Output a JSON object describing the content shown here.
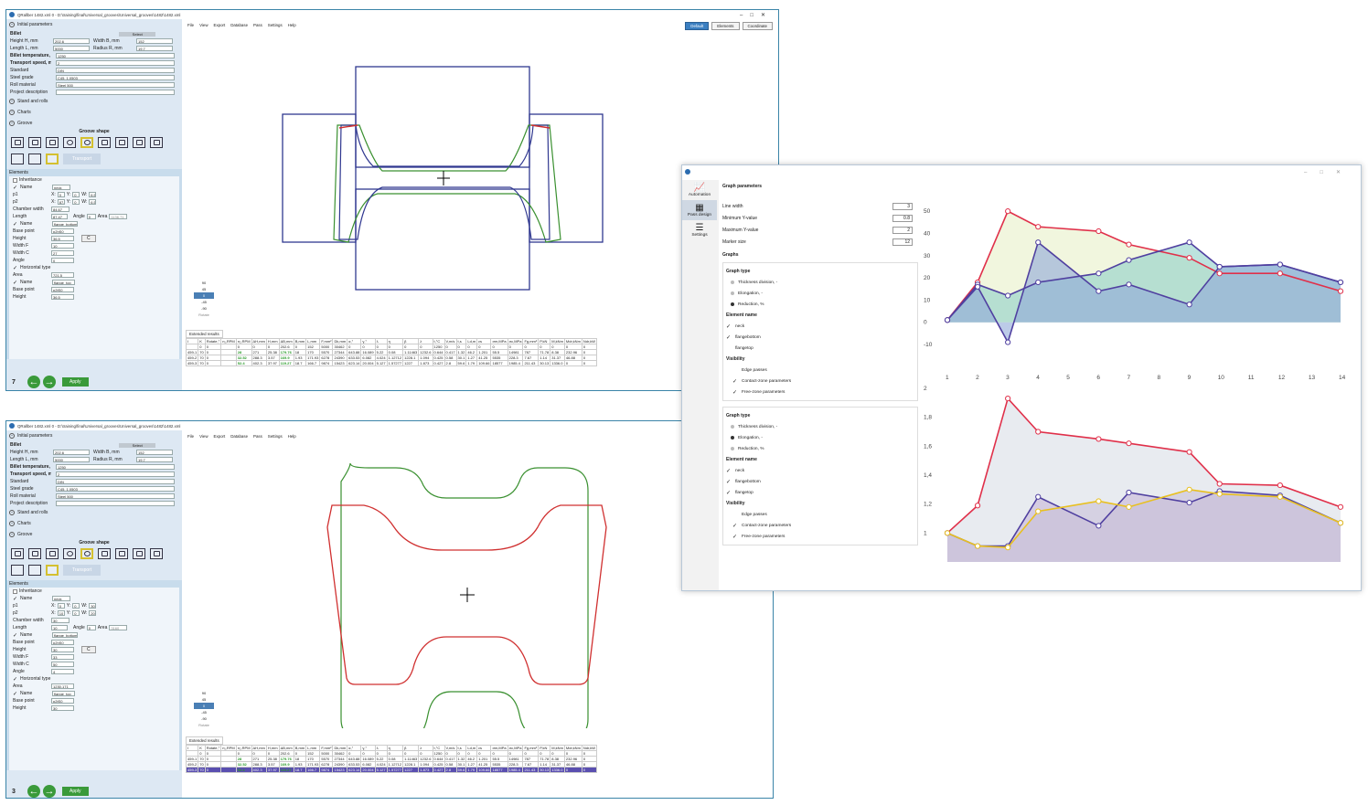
{
  "win1": {
    "title": "QRallber 1482.xml 0 - D:\\training\\final\\Universal_grooves\\Universal_grooves\\1482\\1482.xml",
    "pass": "7"
  },
  "win2": {
    "title": "QRallber 1482.xml 0 - D:\\training\\final\\Universal_grooves\\Universal_grooves\\1482\\1482.xml",
    "pass": "3"
  },
  "menu": [
    "File",
    "View",
    "Export",
    "Database",
    "Pass",
    "Settings",
    "Help"
  ],
  "toolbar": {
    "default": "Default",
    "elements": "Elements",
    "coordinate": "Coordinate"
  },
  "initial": {
    "section": "Initial parameters",
    "billet": "Billet",
    "select": "Select",
    "height_lbl": "Height H, mm",
    "height": "202.6",
    "width_lbl": "Width B, mm",
    "width": "152",
    "length_lbl": "Length L, mm",
    "length": "5000",
    "radius_lbl": "Radius R, mm",
    "radius": "19.7",
    "temp_lbl": "Billet temperature, °C",
    "temp": "1250",
    "speed_lbl": "Transport speed, m/s",
    "speed": "2",
    "standard_lbl": "Standard",
    "standard": "DIN",
    "steel_lbl": "Steel grade",
    "steel": "C45, 1.0503",
    "roll_lbl": "Roll material",
    "roll": "Steel 500",
    "project_lbl": "Project description"
  },
  "sections": {
    "stand": "Stand and rolls",
    "charts": "Charts",
    "groove": "Groove",
    "groove_shape": "Groove shape",
    "transport": "Transport"
  },
  "elements": {
    "title": "Elements",
    "inheritance": "Inheritance",
    "name1_lbl": "Name",
    "name1": "neck",
    "p1": "p1",
    "p2": "p2",
    "x": "X:",
    "y": "Y:",
    "w": "W:",
    "fix": "Fix",
    "chamber_lbl": "Chamber width",
    "length_lbl": "Length",
    "angle_lbl": "Angle",
    "area_lbl": "Area",
    "name2": "flange_bottom",
    "base_lbl": "Base point",
    "base": "p2hS0",
    "height_lbl": "Height",
    "widthf_lbl": "Width F",
    "widthc_lbl": "Width C",
    "horiz": "Horizontal type",
    "name3": "flange_top",
    "c": "C",
    "w1": {
      "p1x": "0",
      "p1y": "0",
      "p1w": "6.5",
      "p2x": "87.47",
      "p2y": "0",
      "p2w": "6.5",
      "chamber": "84.67",
      "length": "87.47",
      "angle": "0",
      "area": "1136.71",
      "height": "36.5",
      "wf": "10",
      "wc": "27",
      "angle2": "0",
      "area2": "721.5",
      "base3": "p2tS0",
      "height3": "36.5"
    },
    "w2": {
      "p1x": "0",
      "p1y": "0",
      "p1w": "30",
      "p2x": "10",
      "p2y": "0",
      "p2w": "20",
      "chamber": "30",
      "length": "10",
      "angle": "0",
      "area": "3160",
      "height": "30",
      "wf": "33",
      "wc": "50",
      "angle2": "4",
      "area2": "1230.171",
      "base3": "p2tS0",
      "height3": "30"
    }
  },
  "rotate": {
    "values": [
      "90",
      "45",
      "0",
      "-45",
      "-90"
    ],
    "label": "Rotate"
  },
  "apply": "Apply",
  "extended": "Extended results",
  "results": {
    "headers": [
      "I",
      "K",
      "Rotate,°",
      "n₁,RPM",
      "n₂,RPM",
      "ΔH,mm",
      "H,mm",
      "ΔB,mm",
      "B,mm",
      "L,mm",
      "F,mm²",
      "Dk,mm",
      "α,°",
      "γ,°",
      "λ",
      "η",
      "β",
      "λ",
      "t,°C",
      "V,m/s",
      "t,s",
      "Ld,m",
      "εs",
      "σm,MPa",
      "σc,MPa",
      "Fg,mm²",
      "P,kN",
      "M,kNm",
      "Mdr,kNm",
      "Ndr,kW"
    ],
    "rows": [
      [
        "",
        "0",
        "0",
        "",
        "0",
        "0",
        "0",
        "202.6",
        "0",
        "152",
        "5000",
        "30462",
        "0",
        "0",
        "0",
        "0",
        "0",
        "0",
        "1250",
        "0",
        "0",
        "0",
        "0",
        "0",
        "0",
        "0",
        "0",
        "0",
        "0",
        "0"
      ],
      [
        "459-1",
        "70",
        "0",
        "",
        "28",
        "271",
        "25.38",
        "179.76",
        "18",
        "170",
        "5570",
        "27344",
        "643.88",
        "16.089",
        "5.22",
        "0.08",
        "1.11463",
        "1232.6",
        "0.644",
        "0.417",
        "1.32",
        "46.2",
        "1.201",
        "55.5",
        "14981",
        "787",
        "71.78",
        "8.38",
        "232.96",
        "0"
      ],
      [
        "459-2",
        "70",
        "0",
        "",
        "32.52",
        "288.3",
        "3.57",
        "169.9",
        "1.93",
        "171.93",
        "6278",
        "24390",
        "633.53",
        "6.082",
        "4.024",
        "1.12712",
        "1228.1",
        "1.094",
        "0.425",
        "0.58",
        "30.1",
        "1.27",
        "41.25",
        "5535",
        "228.3",
        "7.67",
        "1.14",
        "31.37",
        "46.88",
        "0"
      ],
      [
        "459-3",
        "70",
        "0",
        "",
        "52.4",
        "402.3",
        "37.97",
        "119.27",
        "18.7",
        "166.7",
        "9874",
        "15423",
        "623.14",
        "20.004",
        "5.127",
        "1.57277",
        "1227",
        "1.873",
        "0.427",
        "2.8",
        "59.6",
        "1.79",
        "109.66",
        "18577",
        "1985.4",
        "211.43",
        "30.13",
        "1336.0",
        "0",
        "0"
      ]
    ]
  },
  "graph": {
    "nav": [
      "Automation",
      "Pass design",
      "Settings"
    ],
    "title": "Graph parameters",
    "line_width_lbl": "Line width",
    "line_width": "3",
    "min_y_lbl": "Minimum Y-value",
    "min_y": "0.8",
    "max_y_lbl": "Maximum Y-value",
    "max_y": "2",
    "marker_lbl": "Marker size",
    "marker": "12",
    "graphs": "Graphs",
    "type_lbl": "Graph type",
    "types": [
      "Thickness division, -",
      "Elongation, -",
      "Reduction, %"
    ],
    "elem_lbl": "Element name",
    "elems": [
      "neck",
      "flangebottom",
      "flangetop"
    ],
    "vis_lbl": "Visibility",
    "vis": [
      "Edge passes",
      "Contact-zone parameters",
      "Free-zone parameters"
    ]
  },
  "chart_data": [
    {
      "type": "area",
      "x": [
        1,
        2,
        3,
        4,
        5,
        6,
        7,
        8,
        9,
        10,
        11,
        12,
        13,
        14
      ],
      "ylim": [
        -10,
        55
      ],
      "yticks": [
        50,
        40,
        30,
        20,
        10,
        0,
        -10
      ],
      "series": [
        {
          "color": "#e0304a",
          "points": [
            [
              1,
              1
            ],
            [
              2,
              18
            ],
            [
              3,
              50
            ],
            [
              4,
              43
            ],
            [
              6,
              41
            ],
            [
              7,
              35
            ],
            [
              9,
              29
            ],
            [
              10,
              22
            ],
            [
              12,
              22
            ],
            [
              14,
              14
            ]
          ]
        },
        {
          "color": "#5040a0",
          "points": [
            [
              1,
              1
            ],
            [
              2,
              17
            ],
            [
              3,
              12
            ],
            [
              4,
              18
            ],
            [
              6,
              22
            ],
            [
              7,
              28
            ],
            [
              9,
              36
            ],
            [
              10,
              25
            ],
            [
              12,
              26
            ],
            [
              14,
              18
            ]
          ]
        },
        {
          "color": "#5040a0",
          "points": [
            [
              1,
              1
            ],
            [
              2,
              16
            ],
            [
              3,
              -9
            ],
            [
              4,
              36
            ],
            [
              6,
              14
            ],
            [
              7,
              17
            ],
            [
              9,
              8
            ],
            [
              10,
              25
            ],
            [
              12,
              26
            ],
            [
              14,
              18
            ]
          ]
        }
      ]
    },
    {
      "type": "area",
      "x": [
        1,
        2,
        3,
        4,
        5,
        6,
        7,
        8,
        9,
        10,
        11,
        12,
        13,
        14
      ],
      "ylim": [
        0.8,
        2
      ],
      "yticks": [
        "2",
        "1,8",
        "1,6",
        "1,4",
        "1,2",
        "1"
      ],
      "series": [
        {
          "color": "#e0304a",
          "points": [
            [
              1,
              1
            ],
            [
              2,
              1.19
            ],
            [
              3,
              1.93
            ],
            [
              4,
              1.7
            ],
            [
              6,
              1.65
            ],
            [
              7,
              1.62
            ],
            [
              9,
              1.56
            ],
            [
              10,
              1.34
            ],
            [
              12,
              1.33
            ],
            [
              14,
              1.18
            ]
          ]
        },
        {
          "color": "#5040a0",
          "points": [
            [
              1,
              1
            ],
            [
              2,
              0.91
            ],
            [
              3,
              0.91
            ],
            [
              4,
              1.25
            ],
            [
              6,
              1.05
            ],
            [
              7,
              1.28
            ],
            [
              9,
              1.21
            ],
            [
              10,
              1.29
            ],
            [
              12,
              1.26
            ],
            [
              14,
              1.07
            ]
          ]
        },
        {
          "color": "#e8c020",
          "points": [
            [
              1,
              1
            ],
            [
              2,
              0.91
            ],
            [
              3,
              0.9
            ],
            [
              4,
              1.15
            ],
            [
              6,
              1.22
            ],
            [
              7,
              1.18
            ],
            [
              9,
              1.3
            ],
            [
              10,
              1.27
            ],
            [
              12,
              1.25
            ],
            [
              14,
              1.07
            ]
          ]
        }
      ]
    }
  ]
}
